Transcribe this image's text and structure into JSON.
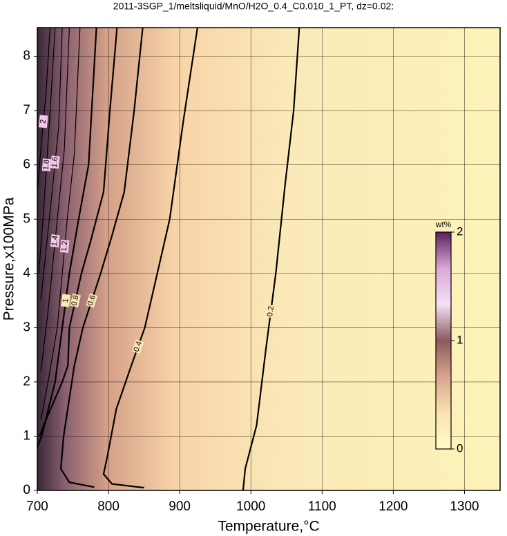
{
  "chart_data": {
    "type": "contour",
    "title": "2011-3SGP_1/meltsliquid/MnO/H2O_0.4_C0.010_1_PT, dz=0.02:",
    "x_label": "Temperature,°C",
    "y_label": "Pressure,x100MPa",
    "xlim": [
      700,
      1350
    ],
    "ylim": [
      0,
      8.53
    ],
    "xticks": [
      700,
      800,
      900,
      1000,
      1100,
      1200,
      1300
    ],
    "yticks": [
      0,
      1,
      2,
      3,
      4,
      5,
      6,
      7,
      8
    ],
    "grid": true,
    "series": [
      {
        "name": "0.2",
        "color": "#000000",
        "x": [
          1068,
          1060,
          1048,
          1035,
          1021,
          1008,
          992,
          989
        ],
        "y": [
          8.53,
          7,
          5.63,
          4,
          2.6,
          1.2,
          0.4,
          0
        ]
      },
      {
        "name": "0.4",
        "color": "#000000",
        "x": [
          925,
          905,
          886,
          865,
          851,
          832,
          811,
          798,
          793,
          805,
          850
        ],
        "y": [
          8.53,
          6.8,
          5,
          3.8,
          3,
          2.3,
          1.5,
          0.6,
          0.3,
          0.12,
          0.05
        ]
      },
      {
        "name": "0.6",
        "color": "#000000",
        "x": [
          848,
          836,
          822,
          805,
          789,
          764,
          752,
          737,
          733,
          745,
          780
        ],
        "y": [
          8.53,
          7,
          5.5,
          4.7,
          4,
          3,
          2.3,
          1,
          0.4,
          0.15,
          0.06
        ]
      },
      {
        "name": "0.8",
        "color": "#000000",
        "x": [
          812,
          802,
          793,
          775,
          762,
          745,
          743,
          735,
          722,
          712,
          703
        ],
        "y": [
          8.53,
          7,
          5.5,
          4.6,
          4,
          3,
          2.3,
          2,
          1.6,
          1.3,
          1
        ]
      },
      {
        "name": "1",
        "color": "#000000",
        "x": [
          783,
          772,
          758,
          745,
          735,
          725,
          706,
          700
        ],
        "y": [
          8.53,
          6,
          5,
          4,
          3,
          2,
          1,
          0.8
        ]
      },
      {
        "name": "1.2",
        "color": "#000000",
        "x": [
          760,
          752,
          742,
          735,
          728,
          715,
          705
        ],
        "y": [
          8.53,
          6.2,
          5,
          4,
          3,
          2,
          1.3
        ]
      },
      {
        "name": "1.4",
        "color": "#000000",
        "x": [
          745,
          738,
          728,
          722,
          715,
          705
        ],
        "y": [
          8.53,
          6.3,
          5,
          4.2,
          3.3,
          2.2
        ]
      },
      {
        "name": "1.6",
        "color": "#000000",
        "x": [
          735,
          730,
          720,
          712,
          705
        ],
        "y": [
          8.53,
          6.7,
          5.4,
          4.4,
          3.5
        ]
      },
      {
        "name": "1.8",
        "color": "#000000",
        "x": [
          725,
          718,
          708,
          702
        ],
        "y": [
          8.53,
          7,
          5,
          4
        ]
      },
      {
        "name": "2",
        "color": "#000000",
        "x": [
          718,
          712,
          705,
          700
        ],
        "y": [
          8.53,
          7.3,
          6.3,
          5.5
        ]
      }
    ],
    "colorbar": {
      "label": "wt%",
      "lim": [
        0,
        2
      ],
      "ticks": [
        0,
        1,
        2
      ],
      "colors": [
        "#fffcc8",
        "#fbe2b0",
        "#d9a48e",
        "#8a5a60",
        "#f5e0f5",
        "#d8a8d8",
        "#5a2060"
      ]
    }
  }
}
